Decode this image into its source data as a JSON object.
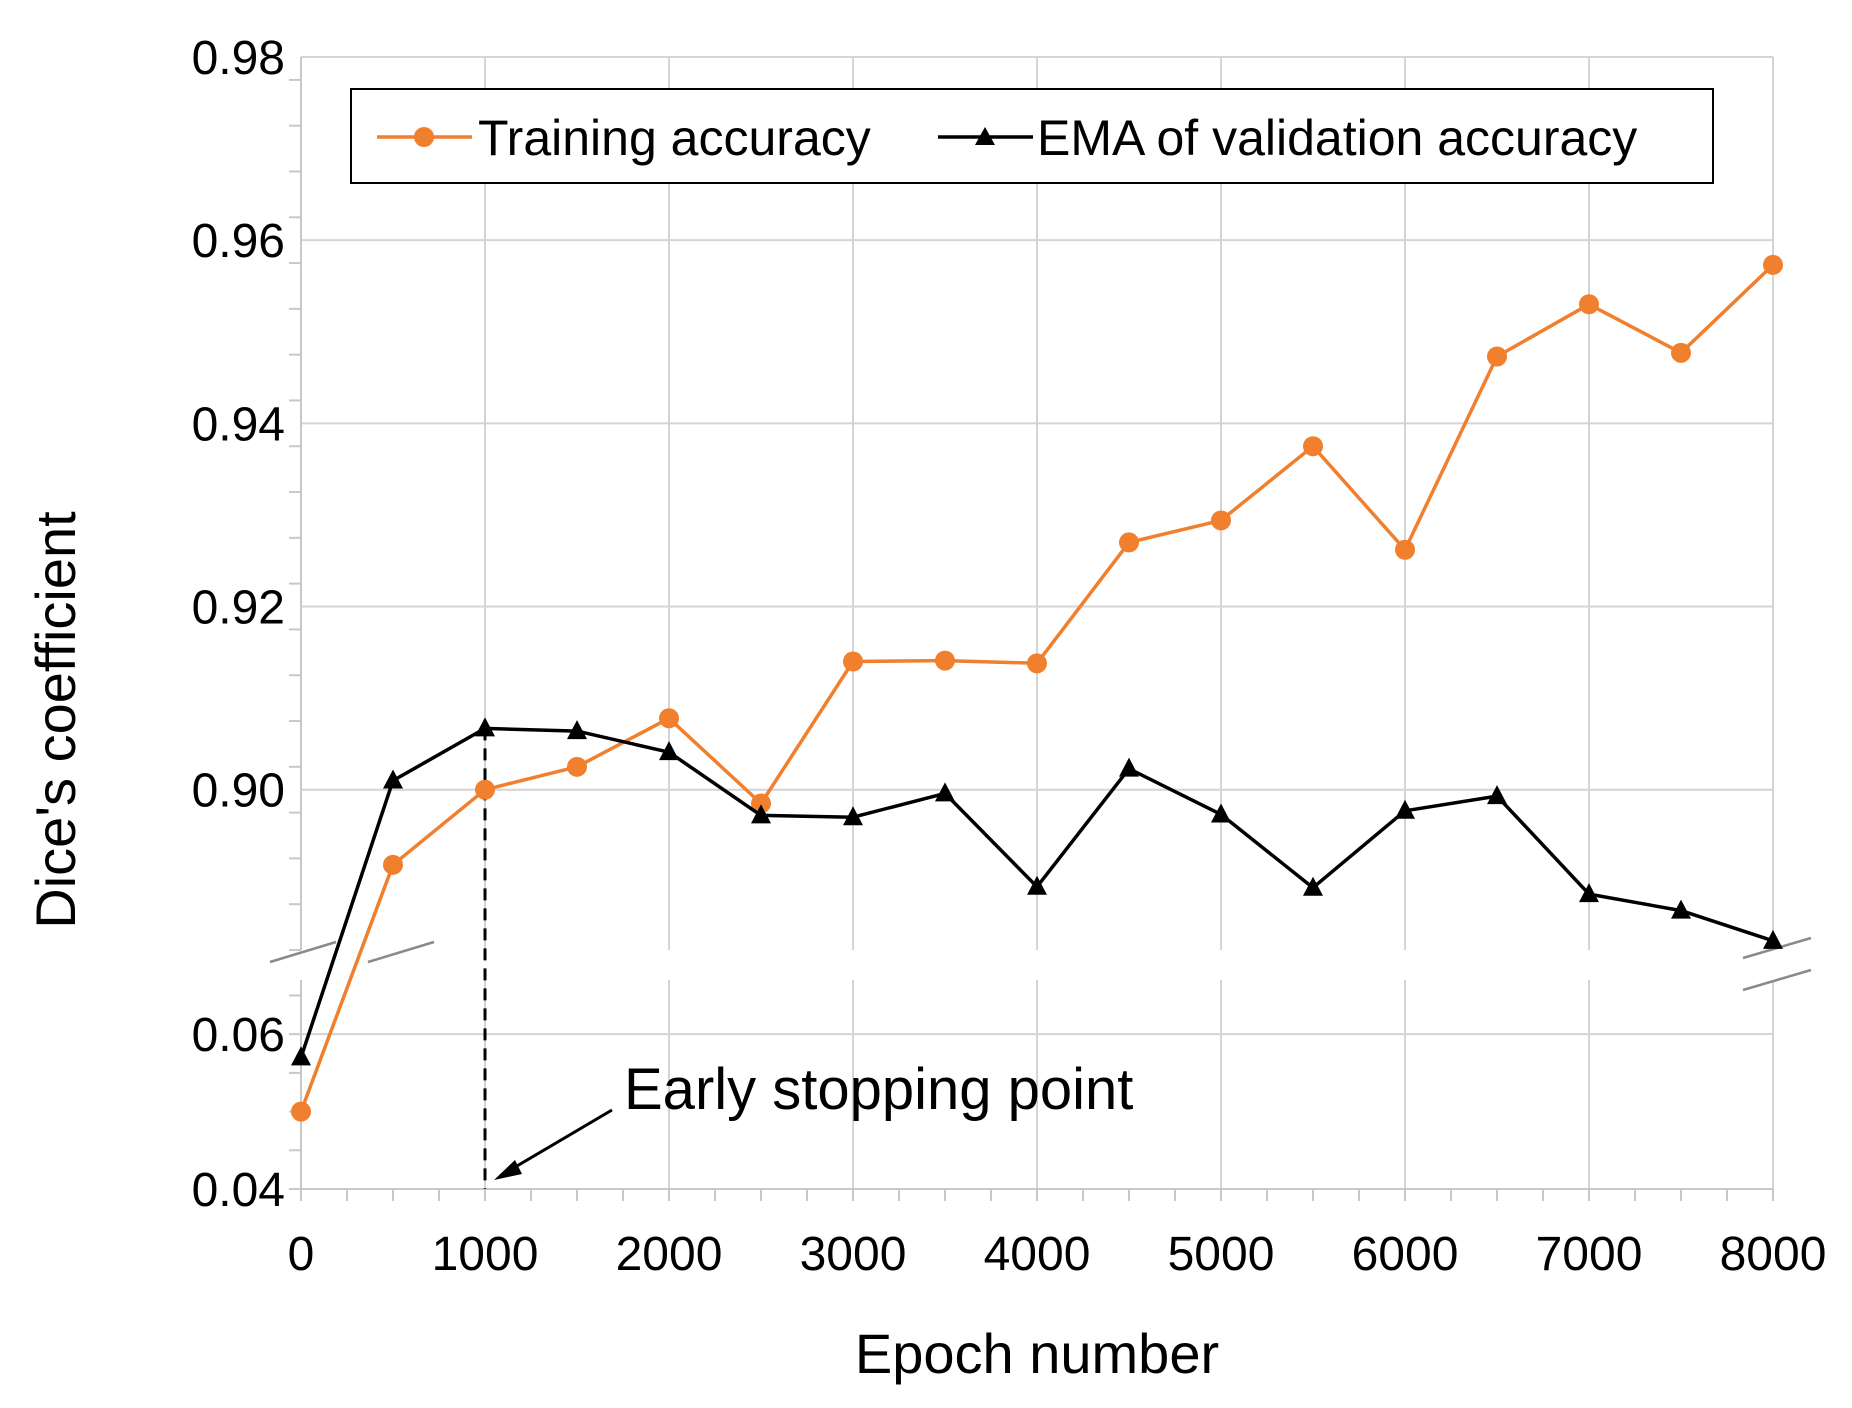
{
  "chart_data": {
    "type": "line",
    "title": "",
    "xlabel": "Epoch number",
    "ylabel": "Dice's coefficient",
    "x": [
      0,
      500,
      1000,
      1500,
      2000,
      2500,
      3000,
      3500,
      4000,
      4500,
      5000,
      5500,
      6000,
      6500,
      7000,
      7500,
      8000
    ],
    "x_ticks": [
      0,
      1000,
      2000,
      3000,
      4000,
      5000,
      6000,
      7000,
      8000
    ],
    "x_tick_labels": [
      "0",
      "1000",
      "2000",
      "3000",
      "4000",
      "5000",
      "6000",
      "7000",
      "8000"
    ],
    "xlim": [
      0,
      8000
    ],
    "y_axis_break": true,
    "y_segments": [
      {
        "ylim": [
          0.04,
          0.067
        ],
        "ticks": [
          0.04,
          0.06
        ],
        "tick_labels": [
          "0.04",
          "0.06"
        ]
      },
      {
        "ylim": [
          0.8825,
          0.98
        ],
        "ticks": [
          0.9,
          0.92,
          0.94,
          0.96,
          0.98
        ],
        "tick_labels": [
          "0.90",
          "0.92",
          "0.94",
          "0.96",
          "0.98"
        ]
      }
    ],
    "grid": true,
    "legend_position": "top",
    "series": [
      {
        "name": "Training accuracy",
        "color": "#f07f2e",
        "marker": "circle",
        "values": [
          0.05,
          0.8918,
          0.9,
          0.9025,
          0.9078,
          0.8985,
          0.914,
          0.9141,
          0.9138,
          0.927,
          0.9294,
          0.9375,
          0.9262,
          0.9473,
          0.953,
          0.9477,
          0.9573
        ]
      },
      {
        "name": "EMA of validation accuracy",
        "color": "#000000",
        "marker": "triangle",
        "values": [
          0.057,
          0.901,
          0.9067,
          0.9064,
          0.9041,
          0.8972,
          0.897,
          0.8996,
          0.8894,
          0.9023,
          0.8973,
          0.8893,
          0.8977,
          0.8993,
          0.8886,
          0.8868,
          0.8835
        ]
      }
    ],
    "annotations": [
      {
        "text": "Early stopping point",
        "x": 1000,
        "line_style": "dashed"
      }
    ]
  }
}
